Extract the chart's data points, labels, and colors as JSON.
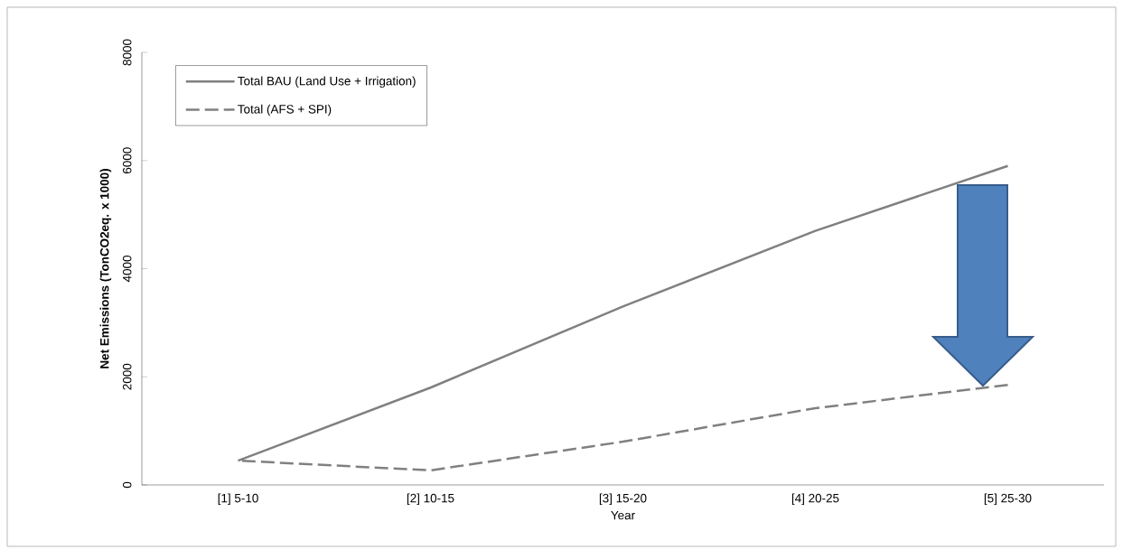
{
  "chart_data": {
    "type": "line",
    "xlabel": "Year",
    "ylabel": "Net Emissions (TonCO2eq. x 1000)",
    "categories": [
      "[1] 5-10",
      "[2] 10-15",
      "[3] 15-20",
      "[4] 20-25",
      "[5] 25-30"
    ],
    "series": [
      {
        "name": "Total BAU (Land Use + Irrigation)",
        "color": "#808080",
        "line_style": "solid",
        "values": [
          450,
          1800,
          3300,
          4700,
          5900
        ]
      },
      {
        "name": "Total (AFS + SPI)",
        "color": "#808080",
        "line_style": "dashed",
        "values": [
          450,
          270,
          800,
          1420,
          1850
        ]
      }
    ],
    "ylim": [
      0,
      8000
    ],
    "yticks": [
      0,
      2000,
      4000,
      6000,
      8000
    ],
    "grid": false,
    "legend": "top left",
    "marker": "none"
  }
}
